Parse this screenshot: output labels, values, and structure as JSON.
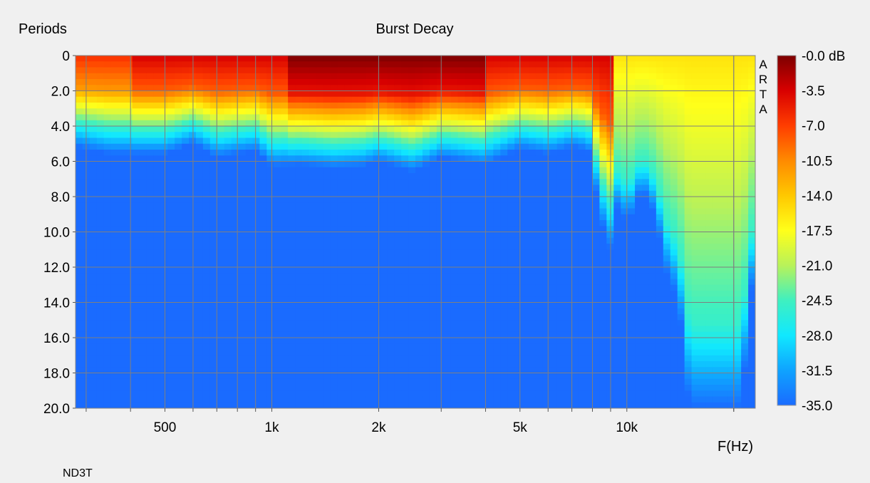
{
  "chart_data": {
    "type": "heatmap",
    "title": "Burst Decay",
    "ylabel": "Periods",
    "xlabel": "F(Hz)",
    "watermark": "ARTA",
    "footer_label": "ND3T",
    "x_scale": "log",
    "xlim": [
      280,
      23000
    ],
    "ylim": [
      0,
      20
    ],
    "x_ticks": [
      {
        "value": 500,
        "label": "500"
      },
      {
        "value": 1000,
        "label": "1k"
      },
      {
        "value": 2000,
        "label": "2k"
      },
      {
        "value": 5000,
        "label": "5k"
      },
      {
        "value": 10000,
        "label": "10k"
      }
    ],
    "y_ticks": [
      {
        "value": 0,
        "label": "0"
      },
      {
        "value": 2,
        "label": "2.0"
      },
      {
        "value": 4,
        "label": "4.0"
      },
      {
        "value": 6,
        "label": "6.0"
      },
      {
        "value": 8,
        "label": "8.0"
      },
      {
        "value": 10,
        "label": "10.0"
      },
      {
        "value": 12,
        "label": "12.0"
      },
      {
        "value": 14,
        "label": "14.0"
      },
      {
        "value": 16,
        "label": "16.0"
      },
      {
        "value": 18,
        "label": "18.0"
      },
      {
        "value": 20,
        "label": "20.0"
      }
    ],
    "colorbar": {
      "unit": "dB",
      "range": [
        -35,
        0
      ],
      "labels": [
        "-0.0 dB",
        "-3.5",
        "-7.0",
        "-10.5",
        "-14.0",
        "-17.5",
        "-21.0",
        "-24.5",
        "-28.0",
        "-31.5",
        "-35.0"
      ]
    },
    "grid": true,
    "decay_contour": {
      "description": "approximate period at which level falls to -35 dB floor",
      "freq_hz": [
        280,
        350,
        500,
        600,
        700,
        900,
        1000,
        1200,
        1500,
        1800,
        2000,
        2500,
        3000,
        4000,
        5000,
        6000,
        7000,
        7800,
        8500,
        9000,
        9500,
        10000,
        11000,
        12000,
        13000,
        14000,
        15000,
        17000,
        19000,
        21000,
        23000
      ],
      "periods": [
        5.2,
        5.6,
        5.6,
        5.0,
        5.8,
        5.4,
        6.3,
        6.2,
        6.4,
        6.3,
        6.0,
        6.6,
        5.8,
        6.2,
        5.3,
        5.6,
        5.2,
        5.4,
        9.5,
        11.0,
        8.0,
        9.8,
        7.5,
        9.0,
        12.5,
        14.0,
        20.0,
        20.0,
        20.0,
        20.0,
        11.0
      ]
    },
    "peak_band": {
      "description": "near 0 dB (dark red) region",
      "freq_hz": [
        1100,
        4000
      ],
      "periods": [
        0,
        1.5
      ]
    }
  }
}
